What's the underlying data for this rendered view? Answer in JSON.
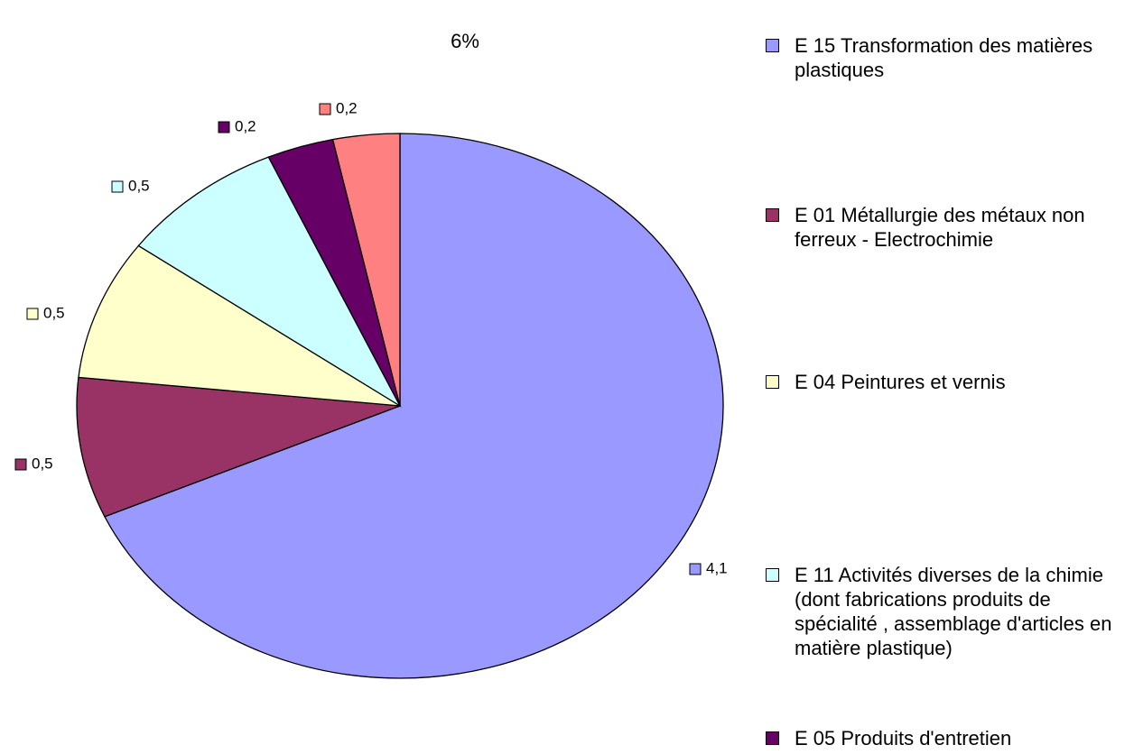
{
  "chart_data": {
    "type": "pie",
    "title": "6%",
    "categories": [
      "E 15 Transformation des matières plastiques",
      "E 01 Métallurgie des métaux non ferreux - Electrochimie",
      "E 04 Peintures et vernis",
      "E 11 Activités diverses de la chimie (dont fabrications produits de spécialité , assemblage d'articles en matière plastique)",
      "E 05 Produits d'entretien",
      null
    ],
    "values": [
      4.1,
      0.5,
      0.5,
      0.5,
      0.2,
      0.2
    ],
    "value_labels": [
      "4,1",
      "0,5",
      "0,5",
      "0,5",
      "0,2",
      "0,2"
    ],
    "colors": [
      "#9999ff",
      "#993366",
      "#ffffcc",
      "#ccffff",
      "#660066",
      "#ff8080"
    ]
  }
}
